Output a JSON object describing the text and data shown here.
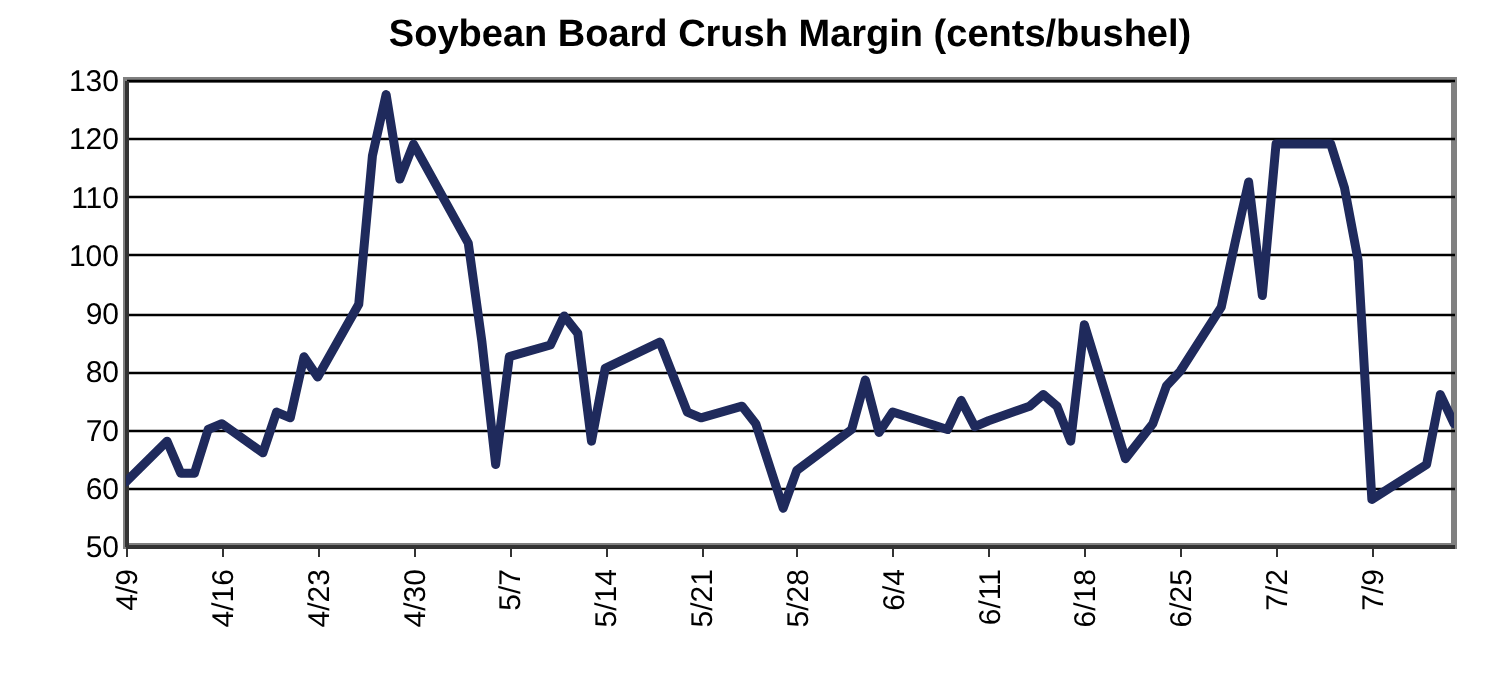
{
  "chart_data": {
    "type": "line",
    "title": "Soybean Board Crush Margin (cents/bushel)",
    "x": [
      "--04-09",
      "--04-12",
      "--04-13",
      "--04-14",
      "--04-15",
      "--04-16",
      "--04-19",
      "--04-20",
      "--04-21",
      "--04-22",
      "--04-23",
      "--04-26",
      "--04-27",
      "--04-28",
      "--04-29",
      "--04-30",
      "--05-04",
      "--05-05",
      "--05-06",
      "--05-07",
      "--05-10",
      "--05-11",
      "--05-12",
      "--05-13",
      "--05-14",
      "--05-18",
      "--05-20",
      "--05-21",
      "--05-24",
      "--05-25",
      "--05-27",
      "--05-28",
      "--06-01",
      "--06-02",
      "--06-03",
      "--06-04",
      "--06-08",
      "--06-09",
      "--06-10",
      "--06-11",
      "--06-14",
      "--06-15",
      "--06-16",
      "--06-17",
      "--06-18",
      "--06-21",
      "--06-23",
      "--06-24",
      "--06-25",
      "--06-28",
      "--06-29",
      "--06-30",
      "--07-01",
      "--07-02",
      "--07-06",
      "--07-07",
      "--07-08",
      "--07-09",
      "--07-13",
      "--07-14",
      "--07-15"
    ],
    "series": [
      {
        "color": "#1f2a5c",
        "values": [
          61,
          68,
          62.5,
          62.5,
          70,
          71,
          66,
          73,
          72,
          82.5,
          79,
          91.5,
          117,
          127.5,
          113,
          119,
          102,
          85,
          64,
          82.5,
          84.5,
          89.5,
          86.5,
          68,
          80.5,
          85,
          73,
          72,
          74,
          71,
          56.5,
          63,
          70,
          78.5,
          69.5,
          73,
          70,
          75,
          70.5,
          71.5,
          74,
          76,
          74,
          68,
          88,
          65,
          71,
          77.5,
          80,
          91,
          102,
          112.5,
          93,
          119,
          119,
          111.5,
          99,
          58,
          64,
          76,
          71
        ]
      }
    ],
    "xlim": [
      "--04-09",
      "--07-15"
    ],
    "xticks": [
      {
        "value": "--04-09",
        "label": "4/9"
      },
      {
        "value": "--04-16",
        "label": "4/16"
      },
      {
        "value": "--04-23",
        "label": "4/23"
      },
      {
        "value": "--04-30",
        "label": "4/30"
      },
      {
        "value": "--05-07",
        "label": "5/7"
      },
      {
        "value": "--05-14",
        "label": "5/14"
      },
      {
        "value": "--05-21",
        "label": "5/21"
      },
      {
        "value": "--05-28",
        "label": "5/28"
      },
      {
        "value": "--06-04",
        "label": "6/4"
      },
      {
        "value": "--06-11",
        "label": "6/11"
      },
      {
        "value": "--06-18",
        "label": "6/18"
      },
      {
        "value": "--06-25",
        "label": "6/25"
      },
      {
        "value": "--07-02",
        "label": "7/2"
      },
      {
        "value": "--07-09",
        "label": "7/9"
      }
    ],
    "ylim": [
      50,
      130
    ],
    "yticks": [
      50,
      60,
      70,
      80,
      90,
      100,
      110,
      120,
      130
    ],
    "grid": "y",
    "marker": "none",
    "line_style": "solid"
  }
}
